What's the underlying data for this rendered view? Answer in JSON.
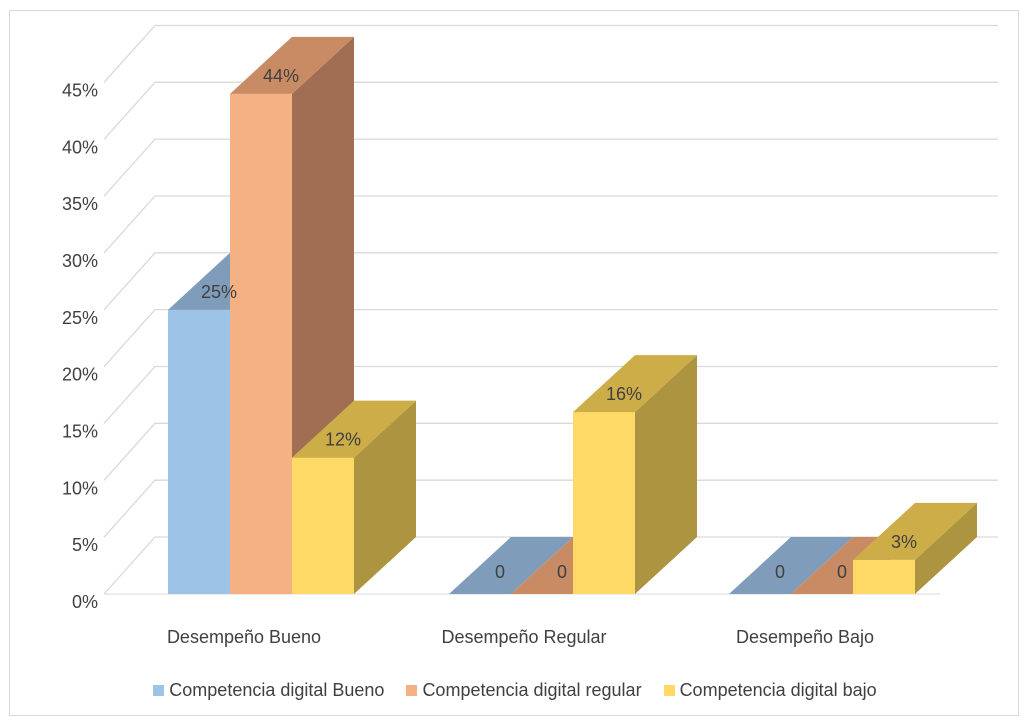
{
  "chart_data": {
    "type": "bar",
    "style": "3d-clustered-column",
    "categories": [
      "Desempeño Bueno",
      "Desempeño Regular",
      "Desempeño Bajo"
    ],
    "series": [
      {
        "name": "Competencia digital Bueno",
        "values": [
          25,
          0,
          0
        ],
        "labels": [
          "25%",
          "0",
          "0"
        ],
        "color": "#9dc3e6",
        "side_color": "#7491ad",
        "top_color": "#7f9dba"
      },
      {
        "name": "Competencia digital regular",
        "values": [
          44,
          0,
          0
        ],
        "labels": [
          "44%",
          "0",
          "0"
        ],
        "color": "#f4b183",
        "side_color": "#a06e52",
        "top_color": "#c98b64"
      },
      {
        "name": "Competencia digital bajo",
        "values": [
          12,
          16,
          3
        ],
        "labels": [
          "12%",
          "16%",
          "3%"
        ],
        "color": "#ffd966",
        "side_color": "#ad9440",
        "top_color": "#ccad47"
      }
    ],
    "y_ticks": [
      "0%",
      "5%",
      "10%",
      "15%",
      "20%",
      "25%",
      "30%",
      "35%",
      "40%",
      "45%"
    ],
    "ylim": [
      0,
      45
    ],
    "y_unit": "%",
    "grid": true,
    "legend_position": "bottom",
    "title": "",
    "xlabel": "",
    "ylabel": ""
  }
}
